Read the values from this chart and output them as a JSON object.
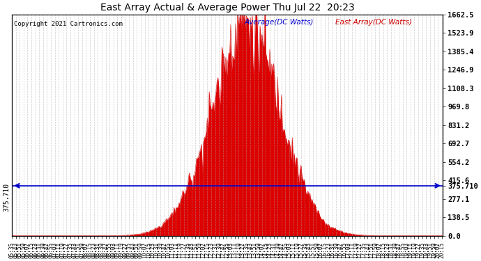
{
  "title": "East Array Actual & Average Power Thu Jul 22  20:23",
  "copyright": "Copyright 2021 Cartronics.com",
  "legend_avg": "Average(DC Watts)",
  "legend_east": "East Array(DC Watts)",
  "ylabel_right_ticks": [
    0.0,
    138.5,
    277.1,
    415.6,
    554.2,
    692.7,
    831.2,
    969.8,
    1108.3,
    1246.9,
    1385.4,
    1523.9,
    1662.5
  ],
  "ymax": 1662.5,
  "ymin": 0.0,
  "avg_line_y": 375.71,
  "avg_line_label": "375.710",
  "background_color": "#ffffff",
  "fill_color": "#dd0000",
  "line_color": "#dd0000",
  "avg_line_color": "#0000cc",
  "title_color": "#000000",
  "copyright_color": "#000000",
  "legend_avg_color": "#0000cc",
  "legend_east_color": "#cc0000",
  "grid_color": "#aaaaaa",
  "xtick_interval_minutes": 8
}
